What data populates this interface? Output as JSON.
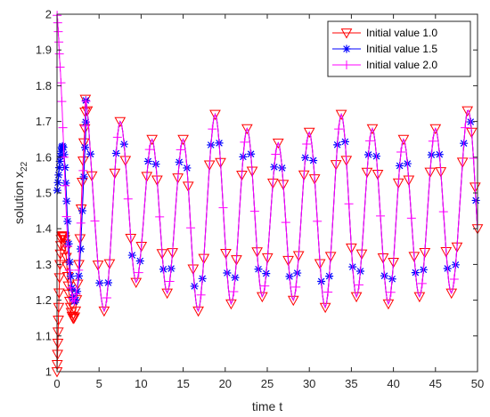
{
  "chart_data": {
    "type": "line",
    "title": "",
    "xlabel": "time t",
    "ylabel_main": "solution x",
    "ylabel_sub": "22",
    "xlim": [
      0,
      50
    ],
    "ylim": [
      1,
      2
    ],
    "xticks": [
      0,
      5,
      10,
      15,
      20,
      25,
      30,
      35,
      40,
      45,
      50
    ],
    "yticks": [
      1,
      1.1,
      1.2,
      1.3,
      1.4,
      1.5,
      1.6,
      1.7,
      1.8,
      1.9,
      2
    ],
    "grid": false,
    "legend_position": "top-right",
    "steady_state": {
      "t": [
        3.6,
        5.6,
        7.5,
        9.4,
        11.3,
        13.1,
        15.0,
        16.8,
        18.8,
        20.7,
        22.6,
        24.4,
        26.3,
        28.1,
        30.0,
        31.9,
        33.8,
        35.6,
        37.5,
        39.4,
        41.2,
        43.1,
        45.0,
        46.9,
        48.8,
        50.0
      ],
      "x": [
        1.73,
        1.17,
        1.7,
        1.25,
        1.65,
        1.22,
        1.65,
        1.17,
        1.72,
        1.19,
        1.68,
        1.21,
        1.64,
        1.2,
        1.67,
        1.18,
        1.72,
        1.21,
        1.68,
        1.19,
        1.65,
        1.21,
        1.68,
        1.22,
        1.73,
        1.4
      ]
    },
    "series": [
      {
        "name": "Initial value 1.0",
        "color": "#ff0000",
        "marker": "triangle-down",
        "transient": {
          "t": [
            0,
            0.1,
            0.2,
            0.35,
            0.5,
            0.7,
            0.9,
            1.1,
            1.35,
            1.6,
            1.9,
            2.2,
            2.6,
            3.0,
            3.3
          ],
          "x": [
            1.0,
            1.08,
            1.18,
            1.3,
            1.37,
            1.38,
            1.37,
            1.32,
            1.24,
            1.18,
            1.15,
            1.17,
            1.3,
            1.53,
            1.68
          ]
        }
      },
      {
        "name": "Initial value 1.5",
        "color": "#0000ff",
        "marker": "asterisk",
        "transient": {
          "t": [
            0,
            0.15,
            0.3,
            0.45,
            0.6,
            0.8,
            1.0,
            1.2,
            1.45,
            1.7,
            2.0,
            2.3,
            2.7,
            3.1,
            3.4
          ],
          "x": [
            1.5,
            1.54,
            1.58,
            1.61,
            1.63,
            1.62,
            1.55,
            1.45,
            1.33,
            1.25,
            1.2,
            1.21,
            1.3,
            1.5,
            1.66
          ]
        }
      },
      {
        "name": "Initial value 2.0",
        "color": "#ff00ff",
        "marker": "plus",
        "transient": {
          "t": [
            0,
            0.1,
            0.2,
            0.3,
            0.45,
            0.6,
            0.8,
            1.0,
            1.25,
            1.5,
            1.8,
            2.1,
            2.5,
            2.9,
            3.3
          ],
          "x": [
            2.0,
            1.97,
            1.93,
            1.88,
            1.82,
            1.74,
            1.62,
            1.5,
            1.37,
            1.27,
            1.21,
            1.2,
            1.26,
            1.45,
            1.66
          ]
        }
      }
    ]
  }
}
